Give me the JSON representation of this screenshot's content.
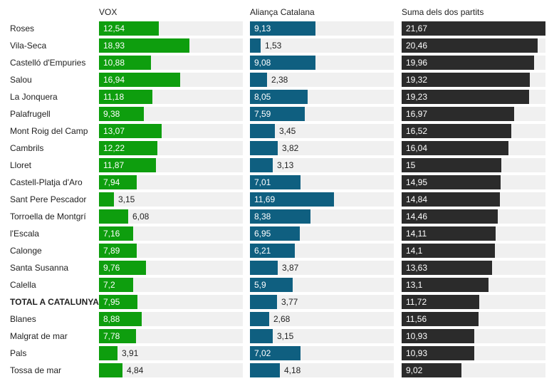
{
  "chart_data": {
    "type": "bar",
    "orientation": "horizontal",
    "categories": [
      "Roses",
      "Vila-Seca",
      "Castelló d'Empuries",
      "Salou",
      "La Jonquera",
      "Palafrugell",
      "Mont Roig del Camp",
      "Cambrils",
      "Lloret",
      "Castell-Platja d'Aro",
      "Sant Pere Pescador",
      "Torroella de Montgrí",
      "l'Escala",
      "Calonge",
      "Santa Susanna",
      "Calella",
      "TOTAL A CATALUNYA",
      "Blanes",
      "Malgrat de mar",
      "Pals",
      "Tossa de mar"
    ],
    "highlight_category": "TOTAL A CATALUNYA",
    "series": [
      {
        "name": "VOX",
        "color": "#0e9e0e",
        "max": 30,
        "labels": [
          "12,54",
          "18,93",
          "10,88",
          "16,94",
          "11,18",
          "9,38",
          "13,07",
          "12,22",
          "11,87",
          "7,94",
          "3,15",
          "6,08",
          "7,16",
          "7,89",
          "9,76",
          "7,2",
          "7,95",
          "8,88",
          "7,78",
          "3,91",
          "4,84"
        ],
        "values": [
          12.54,
          18.93,
          10.88,
          16.94,
          11.18,
          9.38,
          13.07,
          12.22,
          11.87,
          7.94,
          3.15,
          6.08,
          7.16,
          7.89,
          9.76,
          7.2,
          7.95,
          8.88,
          7.78,
          3.91,
          4.84
        ]
      },
      {
        "name": "Aliança Catalana",
        "color": "#0f5f80",
        "max": 20,
        "labels": [
          "9,13",
          "1,53",
          "9,08",
          "2,38",
          "8,05",
          "7,59",
          "3,45",
          "3,82",
          "3,13",
          "7,01",
          "11,69",
          "8,38",
          "6,95",
          "6,21",
          "3,87",
          "5,9",
          "3,77",
          "2,68",
          "3,15",
          "7,02",
          "4,18"
        ],
        "values": [
          9.13,
          1.53,
          9.08,
          2.38,
          8.05,
          7.59,
          3.45,
          3.82,
          3.13,
          7.01,
          11.69,
          8.38,
          6.95,
          6.21,
          3.87,
          5.9,
          3.77,
          2.68,
          3.15,
          7.02,
          4.18
        ]
      },
      {
        "name": "Suma dels dos partits",
        "color": "#2b2b2b",
        "max": 21.67,
        "labels": [
          "21,67",
          "20,46",
          "19,96",
          "19,32",
          "19,23",
          "16,97",
          "16,52",
          "16,04",
          "15",
          "14,95",
          "14,84",
          "14,46",
          "14,11",
          "14,1",
          "13,63",
          "13,1",
          "11,72",
          "11,56",
          "10,93",
          "10,93",
          "9,02"
        ],
        "values": [
          21.67,
          20.46,
          19.96,
          19.32,
          19.23,
          16.97,
          16.52,
          16.04,
          15,
          14.95,
          14.84,
          14.46,
          14.11,
          14.1,
          13.63,
          13.1,
          11.72,
          11.56,
          10.93,
          10.93,
          9.02
        ]
      }
    ]
  }
}
